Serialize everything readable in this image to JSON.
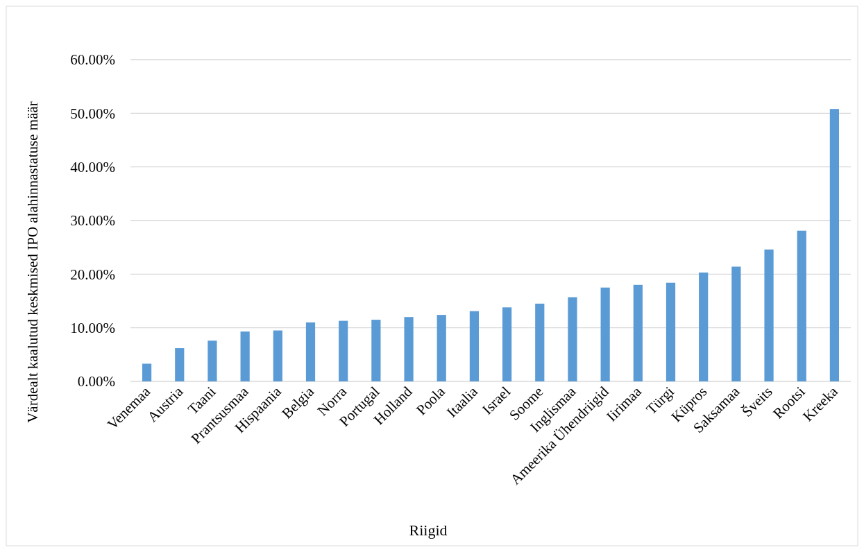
{
  "chart_data": {
    "type": "bar",
    "xlabel": "Riigid",
    "ylabel": "Värdealt kaalutud keskmised IPO alahinnastatuse määr",
    "categories": [
      "Venemaa",
      "Austria",
      "Taani",
      "Prantsusmaa",
      "Hispaania",
      "Belgia",
      "Norra",
      "Portugal",
      "Holland",
      "Poola",
      "Itaalia",
      "Israel",
      "Soome",
      "Inglismaa",
      "Ameerika Ühendriigid",
      "Iirimaa",
      "Türgi",
      "Küpros",
      "Saksamaa",
      "Šveits",
      "Rootsi",
      "Kreeka"
    ],
    "values": [
      3.3,
      6.2,
      7.6,
      9.3,
      9.5,
      11.0,
      11.3,
      11.5,
      12.0,
      12.4,
      13.1,
      13.8,
      14.5,
      15.7,
      17.5,
      18.0,
      18.4,
      20.3,
      21.4,
      24.6,
      28.1,
      50.8
    ],
    "color": "#5b9bd5",
    "ylim": [
      0,
      60
    ],
    "yticks": [
      {
        "value": 0,
        "label": "0.00%"
      },
      {
        "value": 10,
        "label": "10.00%"
      },
      {
        "value": 20,
        "label": "20.00%"
      },
      {
        "value": 30,
        "label": "30.00%"
      },
      {
        "value": 40,
        "label": "40.00%"
      },
      {
        "value": 50,
        "label": "50.00%"
      },
      {
        "value": 60,
        "label": "60.00%"
      }
    ],
    "grid": "y"
  }
}
